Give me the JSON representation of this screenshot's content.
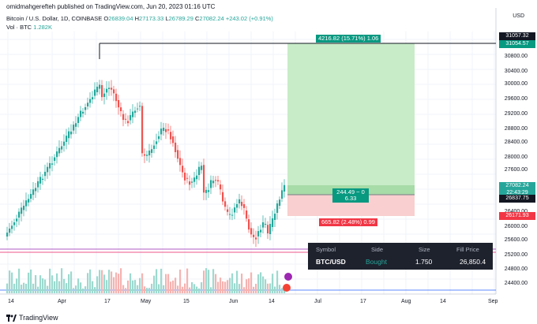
{
  "header": "omidmahgerefteh published on TradingView.com, Jun 20, 2023 01:16 UTC",
  "legend": {
    "symbol": "Bitcoin / U.S. Dollar, 1D, COINBASE",
    "o_label": "O",
    "o": "26839.04",
    "h_label": "H",
    "h": "27173.33",
    "l_label": "L",
    "l": "26789.29",
    "c_label": "C",
    "c": "27082.24",
    "change": "+243.02 (+0.91%)",
    "vol_label": "Vol · BTC",
    "vol": "1.282K"
  },
  "axis": {
    "currency": "USD",
    "y_labels": [
      "30800.00",
      "30400.00",
      "30000.00",
      "29600.00",
      "29200.00",
      "28800.00",
      "28400.00",
      "28000.00",
      "27600.00",
      "27200.00",
      "26400.00",
      "26000.00",
      "25600.00",
      "25200.00",
      "24800.00",
      "24400.00"
    ],
    "x_labels": [
      "14",
      "Apr",
      "17",
      "May",
      "15",
      "Jun",
      "14",
      "Jul",
      "17",
      "Aug",
      "14",
      "Sep"
    ]
  },
  "price_tags": {
    "high1": "31057.32",
    "high2": "31054.57",
    "last_price": "27082.24",
    "countdown": "22:43:29",
    "entry": "26837.75",
    "stop": "26171.93"
  },
  "position": {
    "target_label": "4216.82 (15.71%) 1.06",
    "mid_label_1": "244.49 ~ 0",
    "mid_label_2": "6.33",
    "stop_label": "665.82 (2.48%) 0.99"
  },
  "trade_table": {
    "headers": [
      "Symbol",
      "Side",
      "Size",
      "Fill Price"
    ],
    "symbol": "BTC/USD",
    "side": "Bought",
    "size": "1.750",
    "price": "26,850.4"
  },
  "footer": {
    "brand": "TradingView"
  },
  "colors": {
    "up": "#26a69a",
    "down": "#ef5350",
    "target_fill": "#c8ecc8",
    "stop_fill": "#f9cfcf",
    "label_green": "#089981",
    "label_red": "#f23645"
  }
}
